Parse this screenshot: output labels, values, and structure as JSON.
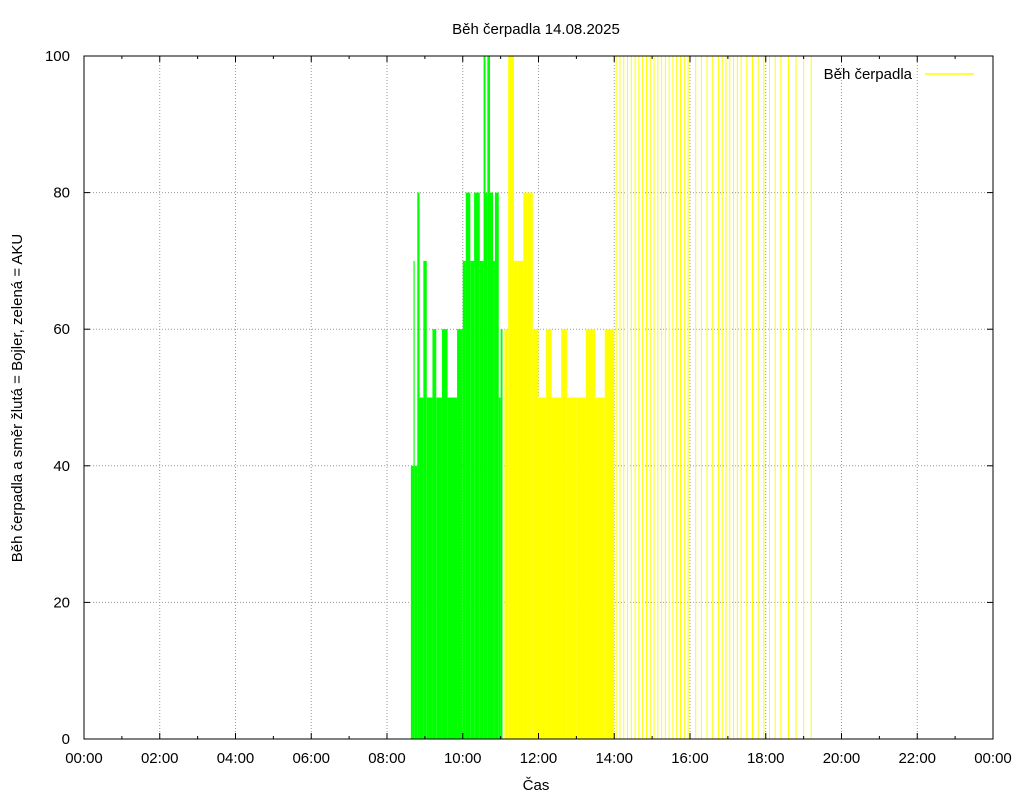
{
  "chart_data": {
    "type": "area",
    "title": "Běh čerpadla 14.08.2025",
    "xlabel": "Čas",
    "ylabel": "Běh čerpadla a směr žlutá = Bojler, zelená = AKU",
    "xlim": [
      0,
      24
    ],
    "ylim": [
      0,
      100
    ],
    "x_ticks": [
      "00:00",
      "02:00",
      "04:00",
      "06:00",
      "08:00",
      "10:00",
      "12:00",
      "14:00",
      "16:00",
      "18:00",
      "20:00",
      "22:00",
      "00:00"
    ],
    "y_ticks": [
      0,
      20,
      40,
      60,
      80,
      100
    ],
    "grid": true,
    "legend": {
      "position": "top-right",
      "label": "Běh čerpadla",
      "color": "#ffff00"
    },
    "colors": {
      "bojler": "#ffff00",
      "aku": "#00ff00"
    },
    "series": [
      {
        "name": "Běh čerpadla",
        "color": "#00ff00",
        "segments": [
          [
            8.63,
            8.7,
            40
          ],
          [
            8.7,
            8.73,
            70
          ],
          [
            8.73,
            8.8,
            40
          ],
          [
            8.8,
            8.86,
            80
          ],
          [
            8.86,
            8.96,
            50
          ],
          [
            8.96,
            9.05,
            70
          ],
          [
            9.05,
            9.2,
            50
          ],
          [
            9.2,
            9.3,
            60
          ],
          [
            9.3,
            9.45,
            50
          ],
          [
            9.45,
            9.6,
            60
          ],
          [
            9.6,
            9.85,
            50
          ],
          [
            9.85,
            10.0,
            60
          ],
          [
            10.0,
            10.08,
            70
          ],
          [
            10.08,
            10.2,
            80
          ],
          [
            10.2,
            10.3,
            70
          ],
          [
            10.3,
            10.45,
            80
          ],
          [
            10.45,
            10.55,
            70
          ],
          [
            10.55,
            10.6,
            100
          ],
          [
            10.6,
            10.65,
            80
          ],
          [
            10.65,
            10.72,
            100
          ],
          [
            10.72,
            10.8,
            80
          ],
          [
            10.8,
            10.85,
            70
          ],
          [
            10.85,
            10.95,
            80
          ],
          [
            10.95,
            11.0,
            50
          ],
          [
            11.0,
            11.05,
            60
          ]
        ]
      },
      {
        "name": "Bojler",
        "color": "#ffff00",
        "segments": [
          [
            11.1,
            11.2,
            60
          ],
          [
            11.2,
            11.35,
            100
          ],
          [
            11.35,
            11.45,
            70
          ],
          [
            11.45,
            11.6,
            70
          ],
          [
            11.6,
            11.7,
            80
          ],
          [
            11.7,
            11.85,
            80
          ],
          [
            11.85,
            12.0,
            60
          ],
          [
            12.0,
            12.2,
            50
          ],
          [
            12.2,
            12.35,
            60
          ],
          [
            12.35,
            12.6,
            50
          ],
          [
            12.6,
            12.75,
            60
          ],
          [
            12.75,
            13.0,
            50
          ],
          [
            13.0,
            13.25,
            50
          ],
          [
            13.25,
            13.5,
            60
          ],
          [
            13.5,
            13.75,
            50
          ],
          [
            13.75,
            14.0,
            60
          ]
        ],
        "pulses": [
          14.05,
          14.15,
          14.25,
          14.35,
          14.45,
          14.55,
          14.65,
          14.75,
          14.85,
          14.95,
          15.05,
          15.15,
          15.25,
          15.35,
          15.45,
          15.55,
          15.65,
          15.75,
          15.85,
          15.95,
          16.15,
          16.3,
          16.45,
          16.6,
          16.75,
          16.85,
          16.95,
          17.05,
          17.15,
          17.25,
          17.35,
          17.5,
          17.65,
          17.8,
          17.95,
          18.1,
          18.25,
          18.4,
          18.6,
          18.8,
          19.0,
          19.2
        ],
        "pulse_value": 100
      }
    ]
  }
}
